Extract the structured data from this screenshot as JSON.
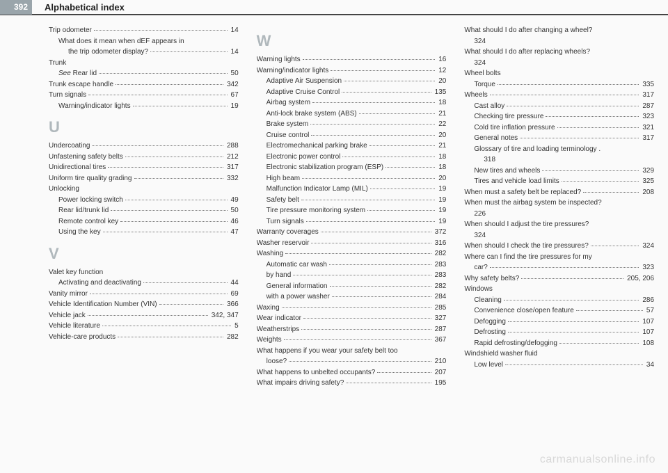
{
  "pageNumber": "392",
  "headerTitle": "Alphabetical index",
  "watermark": "carmanualsonline.info",
  "columns": [
    [
      {
        "label": "Trip odometer",
        "page": "14"
      },
      {
        "label": "What does it mean when dEF appears in",
        "sub": 1,
        "noval": true
      },
      {
        "label": "the trip odometer display?",
        "sub": 2,
        "page": "14"
      },
      {
        "label": "Trunk",
        "noval": true
      },
      {
        "label": "See Rear lid",
        "sub": 1,
        "page": "50",
        "italicSee": true
      },
      {
        "label": "Trunk escape handle",
        "page": "342"
      },
      {
        "label": "Turn signals",
        "page": "67"
      },
      {
        "label": "Warning/indicator lights",
        "sub": 1,
        "page": "19"
      },
      {
        "letter": "U"
      },
      {
        "label": "Undercoating",
        "page": "288"
      },
      {
        "label": "Unfastening safety belts",
        "page": "212"
      },
      {
        "label": "Unidirectional tires",
        "page": "317"
      },
      {
        "label": "Uniform tire quality grading",
        "page": "332"
      },
      {
        "label": "Unlocking",
        "noval": true
      },
      {
        "label": "Power locking switch",
        "sub": 1,
        "page": "49"
      },
      {
        "label": "Rear lid/trunk lid",
        "sub": 1,
        "page": "50"
      },
      {
        "label": "Remote control key",
        "sub": 1,
        "page": "46"
      },
      {
        "label": "Using the key",
        "sub": 1,
        "page": "47"
      },
      {
        "letter": "V"
      },
      {
        "label": "Valet key function",
        "noval": true
      },
      {
        "label": "Activating and deactivating",
        "sub": 1,
        "page": "44"
      },
      {
        "label": "Vanity mirror",
        "page": "69"
      },
      {
        "label": "Vehicle Identification Number (VIN)",
        "page": "366"
      },
      {
        "label": "Vehicle jack",
        "page": "342, 347"
      },
      {
        "label": "Vehicle literature",
        "page": "5"
      },
      {
        "label": "Vehicle-care products",
        "page": "282"
      }
    ],
    [
      {
        "letter": "W"
      },
      {
        "label": "Warning lights",
        "page": "16"
      },
      {
        "label": "Warning/indicator lights",
        "page": "12"
      },
      {
        "label": "Adaptive Air Suspension",
        "sub": 1,
        "page": "20"
      },
      {
        "label": "Adaptive Cruise Control",
        "sub": 1,
        "page": "135"
      },
      {
        "label": "Airbag system",
        "sub": 1,
        "page": "18"
      },
      {
        "label": "Anti-lock brake system (ABS)",
        "sub": 1,
        "page": "21"
      },
      {
        "label": "Brake system",
        "sub": 1,
        "page": "22"
      },
      {
        "label": "Cruise control",
        "sub": 1,
        "page": "20"
      },
      {
        "label": "Electromechanical parking brake",
        "sub": 1,
        "page": "21"
      },
      {
        "label": "Electronic power control",
        "sub": 1,
        "page": "18"
      },
      {
        "label": "Electronic stabilization program (ESP)",
        "sub": 1,
        "page": "18"
      },
      {
        "label": "High beam",
        "sub": 1,
        "page": "20"
      },
      {
        "label": "Malfunction Indicator Lamp (MIL)",
        "sub": 1,
        "page": "19"
      },
      {
        "label": "Safety belt",
        "sub": 1,
        "page": "19"
      },
      {
        "label": "Tire pressure monitoring system",
        "sub": 1,
        "page": "19"
      },
      {
        "label": "Turn signals",
        "sub": 1,
        "page": "19"
      },
      {
        "label": "Warranty coverages",
        "page": "372"
      },
      {
        "label": "Washer reservoir",
        "page": "316"
      },
      {
        "label": "Washing",
        "page": "282"
      },
      {
        "label": "Automatic car wash",
        "sub": 1,
        "page": "283"
      },
      {
        "label": "by hand",
        "sub": 1,
        "page": "283"
      },
      {
        "label": "General information",
        "sub": 1,
        "page": "282"
      },
      {
        "label": "with a power washer",
        "sub": 1,
        "page": "284"
      },
      {
        "label": "Waxing",
        "page": "285"
      },
      {
        "label": "Wear indicator",
        "page": "327"
      },
      {
        "label": "Weatherstrips",
        "page": "287"
      },
      {
        "label": "Weights",
        "page": "367"
      },
      {
        "label": "What happens if you wear your safety belt too",
        "noval": true
      },
      {
        "label": "loose?",
        "sub": 1,
        "page": "210"
      },
      {
        "label": "What happens to unbelted occupants?",
        "page": "207"
      },
      {
        "label": "What impairs driving safety?",
        "page": "195"
      }
    ],
    [
      {
        "label": "What should I do after changing a wheel?",
        "page": "",
        "noval": true
      },
      {
        "label": "324",
        "sub": 1,
        "noval": true,
        "plain": true
      },
      {
        "label": "What should I do after replacing wheels?",
        "page": "",
        "noval": true
      },
      {
        "label": "324",
        "sub": 1,
        "noval": true,
        "plain": true
      },
      {
        "label": "Wheel bolts",
        "noval": true
      },
      {
        "label": "Torque",
        "sub": 1,
        "page": "335"
      },
      {
        "label": "Wheels",
        "page": "317"
      },
      {
        "label": "Cast alloy",
        "sub": 1,
        "page": "287"
      },
      {
        "label": "Checking tire pressure",
        "sub": 1,
        "page": "323"
      },
      {
        "label": "Cold tire inflation pressure",
        "sub": 1,
        "page": "321"
      },
      {
        "label": "General notes",
        "sub": 1,
        "page": "317"
      },
      {
        "label": "Glossary of tire and loading terminology .",
        "sub": 1,
        "noval": true
      },
      {
        "label": "318",
        "sub": 2,
        "noval": true,
        "plain": true
      },
      {
        "label": "New tires and wheels",
        "sub": 1,
        "page": "329"
      },
      {
        "label": "Tires and vehicle load limits",
        "sub": 1,
        "page": "325"
      },
      {
        "label": "When must a safety belt be replaced?",
        "page": "208"
      },
      {
        "label": "When must the airbag system be inspected?",
        "noval": true
      },
      {
        "label": "226",
        "sub": 1,
        "noval": true,
        "plain": true
      },
      {
        "label": "When should I adjust the tire pressures?",
        "noval": true
      },
      {
        "label": "324",
        "sub": 1,
        "noval": true,
        "plain": true
      },
      {
        "label": "When should I check the tire pressures?",
        "page": "324"
      },
      {
        "label": "Where can I find the tire pressures for my",
        "noval": true
      },
      {
        "label": "car?",
        "sub": 1,
        "page": "323"
      },
      {
        "label": "Why safety belts?",
        "page": "205, 206"
      },
      {
        "label": "Windows",
        "noval": true
      },
      {
        "label": "Cleaning",
        "sub": 1,
        "page": "286"
      },
      {
        "label": "Convenience close/open feature",
        "sub": 1,
        "page": "57"
      },
      {
        "label": "Defogging",
        "sub": 1,
        "page": "107"
      },
      {
        "label": "Defrosting",
        "sub": 1,
        "page": "107"
      },
      {
        "label": "Rapid defrosting/defogging",
        "sub": 1,
        "page": "108"
      },
      {
        "label": "Windshield washer fluid",
        "noval": true
      },
      {
        "label": "Low level",
        "sub": 1,
        "page": "34"
      }
    ]
  ]
}
